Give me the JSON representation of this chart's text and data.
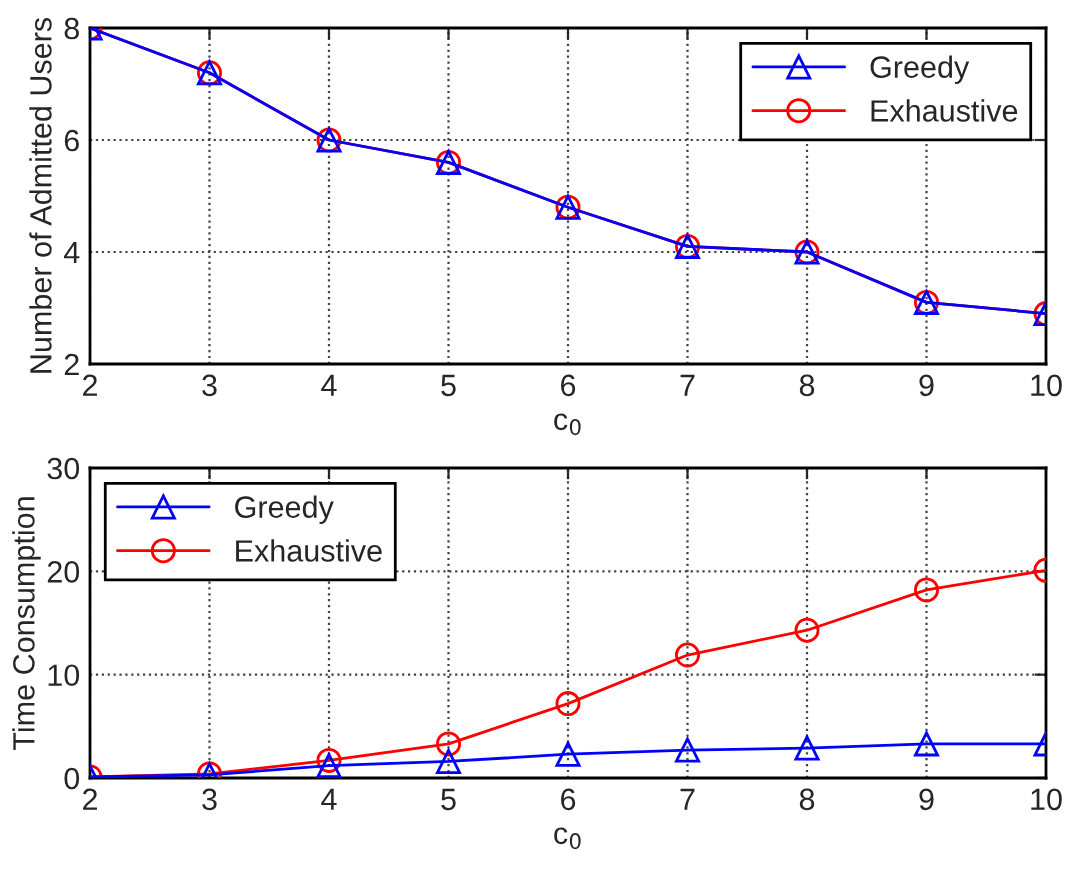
{
  "chart_data": [
    {
      "type": "line",
      "xlabel": "c$_{0}$",
      "ylabel": "Number of Admitted Users",
      "x": [
        2,
        3,
        4,
        5,
        6,
        7,
        8,
        9,
        10
      ],
      "xlim": [
        2,
        10
      ],
      "xticks": [
        2,
        3,
        4,
        5,
        6,
        7,
        8,
        9,
        10
      ],
      "ylim": [
        2,
        8
      ],
      "yticks": [
        2,
        4,
        6,
        8
      ],
      "grid": true,
      "legend": "top right",
      "line_style": "solid",
      "series": [
        {
          "name": "Greedy",
          "color": "#0000ff",
          "marker": "triangle",
          "values": [
            8,
            7.2,
            6.0,
            5.6,
            4.8,
            4.1,
            4.0,
            3.1,
            2.9
          ]
        },
        {
          "name": "Exhaustive",
          "color": "#ff0000",
          "marker": "circle",
          "values": [
            8,
            7.2,
            6.0,
            5.6,
            4.8,
            4.1,
            4.0,
            3.1,
            2.9
          ]
        }
      ]
    },
    {
      "type": "line",
      "xlabel": "c$_{0}$",
      "ylabel": "Time Consumption",
      "x": [
        2,
        3,
        4,
        5,
        6,
        7,
        8,
        9,
        10
      ],
      "xlim": [
        2,
        10
      ],
      "xticks": [
        2,
        3,
        4,
        5,
        6,
        7,
        8,
        9,
        10
      ],
      "ylim": [
        0,
        30
      ],
      "yticks": [
        0,
        10,
        20,
        30
      ],
      "grid": true,
      "legend": "top left",
      "line_style": "solid",
      "series": [
        {
          "name": "Greedy",
          "color": "#0000ff",
          "marker": "triangle",
          "values": [
            0.1,
            0.3,
            1.2,
            1.6,
            2.3,
            2.7,
            2.9,
            3.3,
            3.3
          ]
        },
        {
          "name": "Exhaustive",
          "color": "#ff0000",
          "marker": "circle",
          "values": [
            0.1,
            0.4,
            1.7,
            3.3,
            7.2,
            11.9,
            14.3,
            18.2,
            20.1
          ]
        }
      ]
    }
  ]
}
